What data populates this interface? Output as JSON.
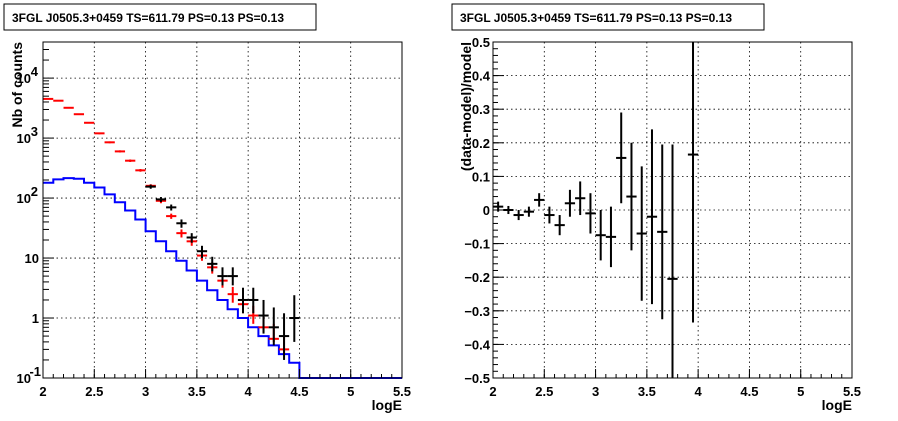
{
  "chart_data": [
    {
      "type": "step-errorbar",
      "title": "3FGL J0505.3+0459 TS=611.79 PS=0.13 PS=0.13",
      "xlabel": "logE",
      "ylabel": "Nb of counts",
      "xlim": [
        2,
        5.5
      ],
      "ylim": [
        0.1,
        40000
      ],
      "y_log": true,
      "grid": true,
      "xticks": [
        "2",
        "2.5",
        "3",
        "3.5",
        "4",
        "4.5",
        "5",
        "5.5"
      ],
      "yticks": [
        {
          "v": 0.1,
          "base": "10",
          "exp": "-1"
        },
        {
          "v": 1,
          "base": "1",
          "exp": ""
        },
        {
          "v": 10,
          "base": "10",
          "exp": ""
        },
        {
          "v": 100,
          "base": "10",
          "exp": "2"
        },
        {
          "v": 1000,
          "base": "10",
          "exp": "3"
        },
        {
          "v": 10000,
          "base": "10",
          "exp": "4"
        }
      ],
      "series": [
        {
          "color": "#0000ff",
          "style": "step",
          "bin_edges": [
            2.0,
            2.1,
            2.2,
            2.3,
            2.4,
            2.5,
            2.6,
            2.7,
            2.8,
            2.9,
            3.0,
            3.1,
            3.2,
            3.3,
            3.4,
            3.5,
            3.6,
            3.7,
            3.8,
            3.9,
            4.0,
            4.1,
            4.2,
            4.3,
            4.4,
            4.5,
            4.6,
            4.7,
            4.8,
            4.9,
            5.0,
            5.1,
            5.2,
            5.3,
            5.4,
            5.5
          ],
          "values": [
            180,
            205,
            215,
            210,
            180,
            150,
            115,
            85,
            62,
            44,
            28,
            19,
            13,
            9,
            6.2,
            4.2,
            2.9,
            2.0,
            1.4,
            1.0,
            0.7,
            0.5,
            0.35,
            0.25,
            0.18,
            0.1,
            0.1,
            0.1,
            0.1,
            0.1,
            0.1,
            0.1,
            0.1,
            0.1,
            0.1
          ]
        },
        {
          "color": "#ff0000",
          "style": "errorbar",
          "x": [
            2.05,
            2.15,
            2.25,
            2.35,
            2.45,
            2.55,
            2.65,
            2.75,
            2.85,
            2.95,
            3.05,
            3.15,
            3.25,
            3.35,
            3.45,
            3.55,
            3.65,
            3.75,
            3.85,
            3.95,
            4.05,
            4.15,
            4.25,
            4.35
          ],
          "y": [
            4500,
            4200,
            3200,
            2500,
            1800,
            1200,
            850,
            600,
            420,
            290,
            160,
            90,
            50,
            26,
            19,
            11,
            7,
            4.2,
            2.5,
            1.7,
            1.1,
            0.7,
            0.45,
            0.3
          ],
          "err_lo": [
            4400,
            4100,
            3120,
            2440,
            1750,
            1160,
            820,
            575,
            400,
            275,
            150,
            82,
            45,
            22,
            16,
            9,
            5.5,
            3.2,
            1.8,
            1.2,
            0.8,
            0.58,
            0.4,
            0.25
          ],
          "err_hi": [
            4600,
            4300,
            3280,
            2560,
            1850,
            1240,
            880,
            625,
            440,
            305,
            170,
            98,
            55,
            30,
            22,
            13,
            8.5,
            5.4,
            3.3,
            2.4,
            1.6,
            1.1,
            0.8,
            0.5
          ]
        },
        {
          "color": "#000000",
          "style": "errorbar",
          "x": [
            3.05,
            3.15,
            3.25,
            3.35,
            3.45,
            3.55,
            3.65,
            3.75,
            3.85,
            3.95,
            4.05,
            4.15,
            4.25,
            4.35,
            4.45
          ],
          "y": [
            155,
            95,
            70,
            38,
            22,
            13,
            8,
            5,
            5,
            2,
            2,
            1.1,
            0.7,
            0.5,
            1.0
          ],
          "err_lo": [
            143,
            86,
            62,
            32,
            18,
            10,
            6,
            3.5,
            3.5,
            1.2,
            1.2,
            0.55,
            0.35,
            0.2,
            0.4
          ],
          "err_hi": [
            167,
            104,
            78,
            44,
            26,
            16,
            10.5,
            7,
            7,
            3.2,
            3.2,
            2.0,
            1.5,
            1.2,
            2.4
          ]
        }
      ]
    },
    {
      "type": "errorbar",
      "title": "3FGL J0505.3+0459 TS=611.79 PS=0.13 PS=0.13",
      "xlabel": "logE",
      "ylabel": "(data-model)/model",
      "xlim": [
        2,
        5.5
      ],
      "ylim": [
        -0.5,
        0.5
      ],
      "grid": true,
      "xticks": [
        "2",
        "2.5",
        "3",
        "3.5",
        "4",
        "4.5",
        "5",
        "5.5"
      ],
      "yticks": [
        "−0.5",
        "−0.4",
        "−0.3",
        "−0.2",
        "−0.1",
        "0",
        "0.1",
        "0.2",
        "0.3",
        "0.4",
        "0.5"
      ],
      "series": [
        {
          "color": "#000000",
          "style": "errorbar",
          "x": [
            2.05,
            2.15,
            2.25,
            2.35,
            2.45,
            2.55,
            2.65,
            2.75,
            2.85,
            2.95,
            3.05,
            3.15,
            3.25,
            3.35,
            3.45,
            3.55,
            3.65,
            3.75,
            3.95
          ],
          "y": [
            0.01,
            0.0,
            -0.015,
            -0.005,
            0.03,
            -0.015,
            -0.045,
            0.02,
            0.035,
            -0.01,
            -0.075,
            -0.08,
            0.155,
            0.04,
            -0.07,
            -0.02,
            -0.065,
            -0.205,
            0.165
          ],
          "err": [
            0.015,
            0.012,
            0.015,
            0.015,
            0.02,
            0.025,
            0.03,
            0.04,
            0.05,
            0.06,
            0.075,
            0.09,
            0.135,
            0.16,
            0.2,
            0.26,
            0.26,
            0.4,
            0.5
          ]
        }
      ]
    }
  ]
}
